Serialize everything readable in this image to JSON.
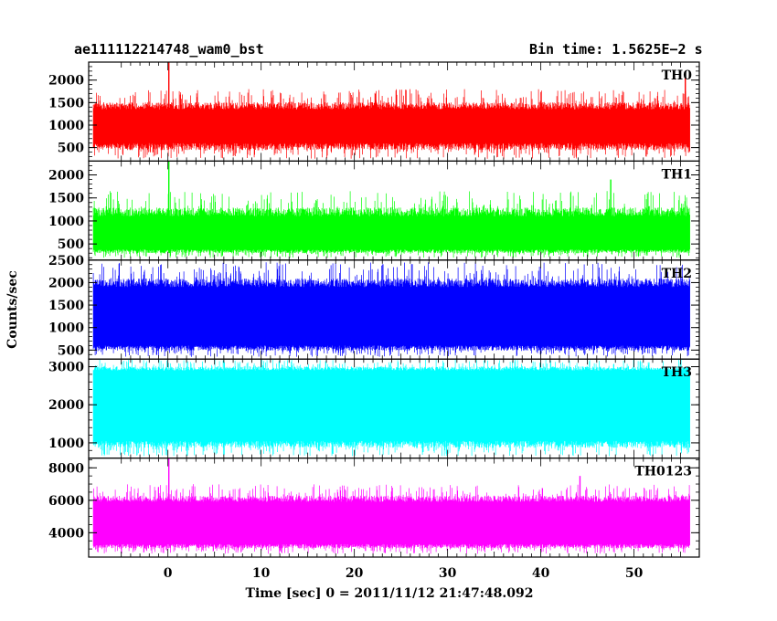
{
  "header": {
    "left": "ae111112214748_wam0_bst",
    "right": "Bin time: 1.5625E−2 s"
  },
  "chart_data": {
    "type": "line",
    "xlabel": "Time [sec] 0 = 2011/11/12 21:47:48.092",
    "ylabel": "Counts/sec",
    "xlim": [
      -8.5,
      57
    ],
    "x_ticks": [
      "0",
      "10",
      "20",
      "30",
      "40",
      "50"
    ],
    "x_range_data": [
      -8,
      56
    ],
    "bin_time_s": 0.015625,
    "panels": [
      {
        "name": "TH0",
        "color": "#ff0000",
        "ylim": [
          200,
          2400
        ],
        "ticks": [
          "500",
          "1000",
          "1500",
          "2000"
        ],
        "typical_low": 600,
        "typical_high": 1350,
        "min": 250,
        "max_typical": 1800,
        "spikes": [
          {
            "x": 0.1,
            "y": 2400
          },
          {
            "x": 55.5,
            "y": 2050
          }
        ]
      },
      {
        "name": "TH1",
        "color": "#00ff00",
        "ylim": [
          150,
          2300
        ],
        "ticks": [
          "500",
          "1000",
          "1500",
          "2000"
        ],
        "typical_low": 380,
        "typical_high": 1100,
        "min": 200,
        "max_typical": 1650,
        "spikes": [
          {
            "x": 0.1,
            "y": 2300
          },
          {
            "x": 47.5,
            "y": 1900
          }
        ]
      },
      {
        "name": "TH2",
        "color": "#0000ff",
        "ylim": [
          300,
          2500
        ],
        "ticks": [
          "500",
          "1000",
          "1500",
          "2000",
          "2500"
        ],
        "typical_low": 600,
        "typical_high": 1900,
        "min": 350,
        "max_typical": 2450,
        "spikes": []
      },
      {
        "name": "TH3",
        "color": "#00ffff",
        "ylim": [
          600,
          3200
        ],
        "ticks": [
          "1000",
          "2000",
          "3000"
        ],
        "typical_low": 1050,
        "typical_high": 2900,
        "min": 650,
        "max_typical": 3200,
        "spikes": []
      },
      {
        "name": "TH0123",
        "color": "#ff00ff",
        "ylim": [
          2500,
          8600
        ],
        "ticks": [
          "4000",
          "6000",
          "8000"
        ],
        "typical_low": 3300,
        "typical_high": 5900,
        "min": 2700,
        "max_typical": 7000,
        "spikes": [
          {
            "x": 0.1,
            "y": 8600
          },
          {
            "x": 44.2,
            "y": 7500
          }
        ]
      }
    ]
  }
}
